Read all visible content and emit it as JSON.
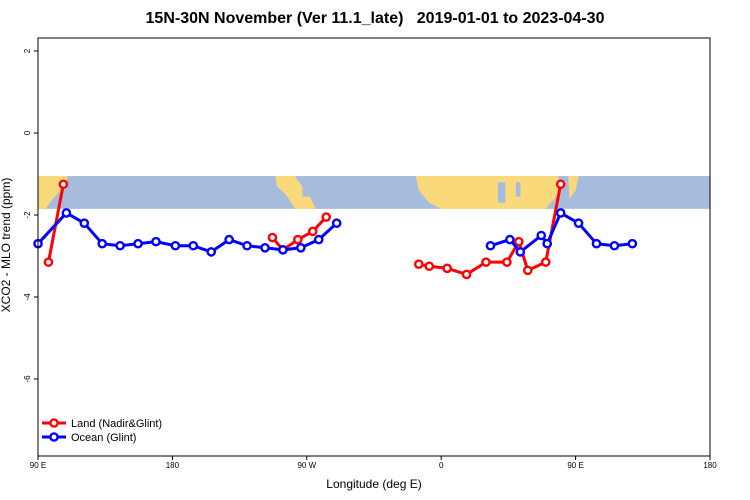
{
  "chart_data": {
    "type": "line",
    "title": "15N-30N November (Ver 11.1_late)   2019-01-01 to 2023-04-30",
    "xlabel": "Longitude (deg E)",
    "ylabel": "XCO2 - MLO trend (ppm)",
    "xlim": [
      90,
      450
    ],
    "ylim": [
      -8,
      2.5
    ],
    "x_ticks": [
      {
        "value": 90,
        "label": "90 E"
      },
      {
        "value": 180,
        "label": "180"
      },
      {
        "value": 270,
        "label": "90 W"
      },
      {
        "value": 360,
        "label": "0"
      },
      {
        "value": 450,
        "label": "90 E"
      },
      {
        "value": 540,
        "label": "180"
      }
    ],
    "y_ticks": [
      {
        "value": 2,
        "label": "2"
      },
      {
        "value": 0,
        "label": "0"
      },
      {
        "value": -2,
        "label": "-2"
      },
      {
        "value": -4,
        "label": "-4"
      },
      {
        "value": -6,
        "label": "-6"
      }
    ],
    "background_map": "world-map-strip",
    "legend_position": "bottom-left",
    "series": [
      {
        "name": "Land (Nadir&Glint)",
        "color": "#ff0000",
        "segments": [
          [
            [
              97,
              -3.15
            ],
            [
              107,
              -1.25
            ]
          ],
          [
            [
              247,
              -2.55
            ],
            [
              254,
              -2.85
            ],
            [
              264,
              -2.6
            ],
            [
              274,
              -2.4
            ],
            [
              283,
              -2.05
            ]
          ],
          [
            [
              345,
              -3.2
            ],
            [
              352,
              -3.25
            ],
            [
              364,
              -3.3
            ],
            [
              377,
              -3.45
            ],
            [
              390,
              -3.15
            ],
            [
              404,
              -3.15
            ],
            [
              412,
              -2.65
            ],
            [
              418,
              -3.35
            ],
            [
              430,
              -3.15
            ],
            [
              440,
              -1.25
            ]
          ]
        ]
      },
      {
        "name": "Ocean (Glint)",
        "color": "#0000ff",
        "segments": [
          [
            [
              90,
              -2.7
            ],
            [
              109,
              -1.95
            ],
            [
              121,
              -2.2
            ],
            [
              133,
              -2.7
            ],
            [
              145,
              -2.75
            ],
            [
              157,
              -2.7
            ],
            [
              169,
              -2.65
            ],
            [
              182,
              -2.75
            ],
            [
              194,
              -2.75
            ],
            [
              206,
              -2.9
            ],
            [
              218,
              -2.6
            ],
            [
              230,
              -2.75
            ],
            [
              242,
              -2.8
            ],
            [
              254,
              -2.85
            ],
            [
              266,
              -2.8
            ],
            [
              278,
              -2.6
            ],
            [
              290,
              -2.2
            ]
          ],
          [
            [
              393,
              -2.75
            ],
            [
              406,
              -2.6
            ],
            [
              413,
              -2.9
            ],
            [
              427,
              -2.5
            ],
            [
              431,
              -2.7
            ],
            [
              440,
              -1.95
            ],
            [
              452,
              -2.2
            ],
            [
              464,
              -2.7
            ],
            [
              476,
              -2.75
            ],
            [
              488,
              -2.7
            ]
          ]
        ]
      }
    ]
  }
}
